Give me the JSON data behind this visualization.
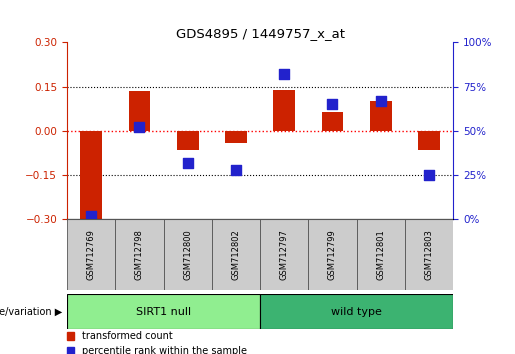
{
  "title": "GDS4895 / 1449757_x_at",
  "samples": [
    "GSM712769",
    "GSM712798",
    "GSM712800",
    "GSM712802",
    "GSM712797",
    "GSM712799",
    "GSM712801",
    "GSM712803"
  ],
  "transformed_count": [
    -0.3,
    0.135,
    -0.065,
    -0.04,
    0.14,
    0.065,
    0.1,
    -0.065
  ],
  "percentile_rank": [
    2,
    52,
    32,
    28,
    82,
    65,
    67,
    25
  ],
  "groups": [
    {
      "label": "SIRT1 null",
      "start": 0,
      "end": 4,
      "color": "#90EE90"
    },
    {
      "label": "wild type",
      "start": 4,
      "end": 8,
      "color": "#3CB371"
    }
  ],
  "ylim_left": [
    -0.3,
    0.3
  ],
  "ylim_right": [
    0,
    100
  ],
  "yticks_left": [
    -0.3,
    -0.15,
    0,
    0.15,
    0.3
  ],
  "yticks_right": [
    0,
    25,
    50,
    75,
    100
  ],
  "bar_color": "#CC2200",
  "dot_color": "#2222CC",
  "bar_width": 0.45,
  "dot_size": 55,
  "group_label": "genotype/variation",
  "legend_items": [
    "transformed count",
    "percentile rank within the sample"
  ],
  "left_axis_color": "#CC2200",
  "right_axis_color": "#2222CC",
  "sirt1_color": "#90EE90",
  "wild_color": "#3CB371"
}
